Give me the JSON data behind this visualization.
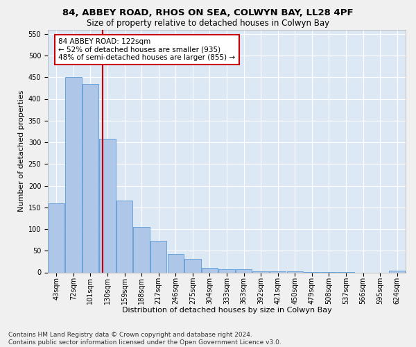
{
  "title1": "84, ABBEY ROAD, RHOS ON SEA, COLWYN BAY, LL28 4PF",
  "title2": "Size of property relative to detached houses in Colwyn Bay",
  "xlabel": "Distribution of detached houses by size in Colwyn Bay",
  "ylabel": "Number of detached properties",
  "categories": [
    "43sqm",
    "72sqm",
    "101sqm",
    "130sqm",
    "159sqm",
    "188sqm",
    "217sqm",
    "246sqm",
    "275sqm",
    "304sqm",
    "333sqm",
    "363sqm",
    "392sqm",
    "421sqm",
    "450sqm",
    "479sqm",
    "508sqm",
    "537sqm",
    "566sqm",
    "595sqm",
    "624sqm"
  ],
  "values": [
    160,
    450,
    435,
    308,
    165,
    105,
    73,
    43,
    32,
    10,
    8,
    8,
    2,
    3,
    2,
    1,
    1,
    1,
    0,
    0,
    4
  ],
  "bar_color": "#aec6e8",
  "bar_edge_color": "#5b9bd5",
  "vline_color": "#cc0000",
  "ylim": [
    0,
    560
  ],
  "yticks": [
    0,
    50,
    100,
    150,
    200,
    250,
    300,
    350,
    400,
    450,
    500,
    550
  ],
  "annotation_text": "84 ABBEY ROAD: 122sqm\n← 52% of detached houses are smaller (935)\n48% of semi-detached houses are larger (855) →",
  "annotation_box_color": "#ffffff",
  "annotation_box_edge_color": "#cc0000",
  "footnote": "Contains HM Land Registry data © Crown copyright and database right 2024.\nContains public sector information licensed under the Open Government Licence v3.0.",
  "fig_bg_color": "#f0f0f0",
  "bg_color": "#dde8f5",
  "grid_color": "#ffffff",
  "title1_fontsize": 9.5,
  "title2_fontsize": 8.5,
  "xlabel_fontsize": 8,
  "ylabel_fontsize": 8,
  "tick_fontsize": 7,
  "annotation_fontsize": 7.5,
  "footnote_fontsize": 6.5
}
